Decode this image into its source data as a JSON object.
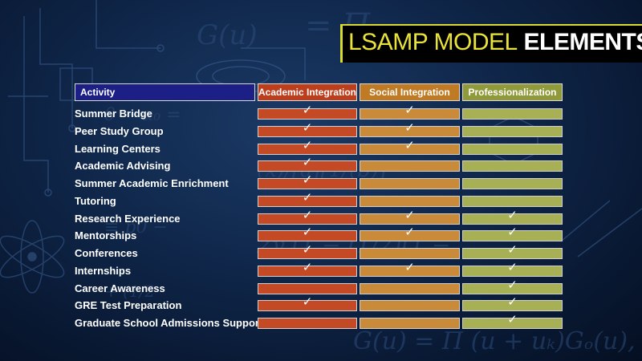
{
  "title": {
    "part1": "LSAMP MODEL",
    "part2": "ELEMENTS"
  },
  "columns": {
    "activity": "Activity",
    "academic": "Academic Integration",
    "social": "Social Integration",
    "professional": "Professionalization"
  },
  "check_symbol": "✓",
  "colors": {
    "activity_header": "#1b1f86",
    "academic": "#c44a26",
    "social": "#c98b3a",
    "professional": "#a7b055",
    "title_accent": "#e8e23a"
  },
  "rows": [
    {
      "activity": "Summer Bridge",
      "academic": true,
      "social": true,
      "professional": false
    },
    {
      "activity": "Peer Study Group",
      "academic": true,
      "social": true,
      "professional": false
    },
    {
      "activity": "Learning Centers",
      "academic": true,
      "social": true,
      "professional": false
    },
    {
      "activity": "Academic Advising",
      "academic": true,
      "social": false,
      "professional": false
    },
    {
      "activity": "Summer Academic Enrichment",
      "academic": true,
      "social": false,
      "professional": false
    },
    {
      "activity": "Tutoring",
      "academic": true,
      "social": false,
      "professional": false
    },
    {
      "activity": "Research Experience",
      "academic": true,
      "social": true,
      "professional": true
    },
    {
      "activity": "Mentorships",
      "academic": true,
      "social": true,
      "professional": true
    },
    {
      "activity": "Conferences",
      "academic": true,
      "social": false,
      "professional": true
    },
    {
      "activity": "Internships",
      "academic": true,
      "social": true,
      "professional": true
    },
    {
      "activity": "Career Awareness",
      "academic": false,
      "social": false,
      "professional": true
    },
    {
      "activity": "GRE Test Preparation",
      "academic": true,
      "social": false,
      "professional": true
    },
    {
      "activity": "Graduate School Admissions Support",
      "academic": false,
      "social": false,
      "professional": true
    }
  ]
}
